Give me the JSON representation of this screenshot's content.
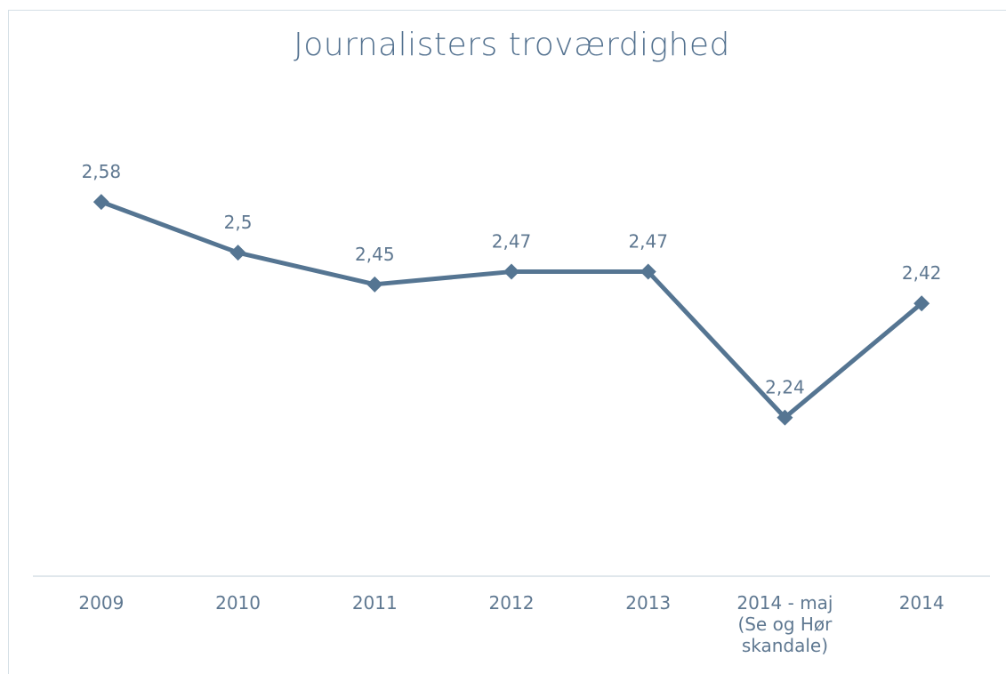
{
  "chart_data": {
    "type": "line",
    "title": "Journalisters troværdighed",
    "xlabel": "",
    "ylabel": "",
    "categories": [
      "2009",
      "2010",
      "2011",
      "2012",
      "2013",
      "2014 - maj (Se og Hør skandale)",
      "2014"
    ],
    "category_lines": [
      [
        "2009"
      ],
      [
        "2010"
      ],
      [
        "2011"
      ],
      [
        "2012"
      ],
      [
        "2013"
      ],
      [
        "2014 - maj",
        "(Se og Hør",
        "skandale)"
      ],
      [
        "2014"
      ]
    ],
    "series": [
      {
        "values": [
          2.58,
          2.5,
          2.45,
          2.47,
          2.47,
          2.24,
          2.42
        ]
      }
    ],
    "data_labels": [
      "2,58",
      "2,5",
      "2,45",
      "2,47",
      "2,47",
      "2,24",
      "2,42"
    ],
    "ylim": [
      1.99,
      2.66
    ],
    "grid": false,
    "legend": "none",
    "colors": {
      "line": "#557592",
      "text": "#5f7891",
      "axis": "#d5dfe6"
    }
  }
}
